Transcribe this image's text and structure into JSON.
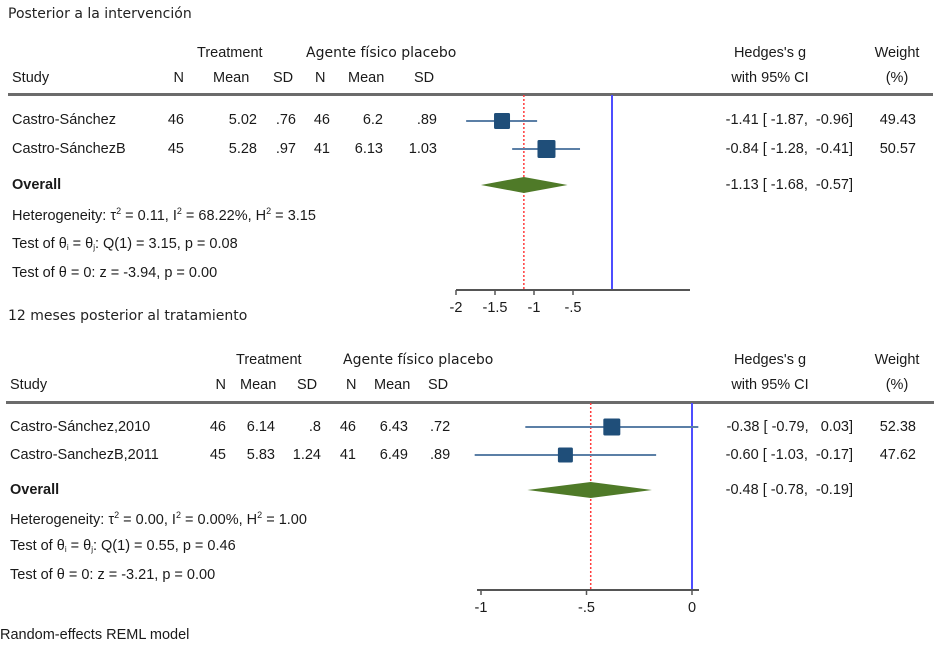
{
  "colors": {
    "study_marker": "#1f4e79",
    "ci_line": "#5b7fa6",
    "overall_diamond": "#4f7a28",
    "null_line": "#4d4dff",
    "overall_line": "#ff3b3b",
    "axis": "#555555"
  },
  "footer": "Random-effects REML model",
  "panels": [
    {
      "title": "Posterior a la intervención",
      "headers": {
        "group1": "Treatment",
        "group2": "Agente físico placebo",
        "study": "Study",
        "n1": "N",
        "mean1": "Mean",
        "sd1": "SD",
        "n2": "N",
        "mean2": "Mean",
        "sd2": "SD",
        "effect_line1": "Hedges's g",
        "effect_line2": "with 95% CI",
        "weight_line1": "Weight",
        "weight_line2": "(%)"
      },
      "rows": [
        {
          "study": "Castro-Sánchez",
          "n1": "46",
          "mean1": "5.02",
          "sd1": ".76",
          "n2": "46",
          "mean2": "6.2",
          "sd2": ".89",
          "effect_text": "-1.41 [ -1.87,  -0.96]",
          "weight": "49.43"
        },
        {
          "study": "Castro-SánchezB",
          "n1": "45",
          "mean1": "5.28",
          "sd1": ".97",
          "n2": "41",
          "mean2": "6.13",
          "sd2": "1.03",
          "effect_text": "-0.84 [ -1.28,  -0.41]",
          "weight": "50.57"
        }
      ],
      "overall": {
        "label": "Overall",
        "effect_text": "-1.13 [ -1.68,  -0.57]"
      },
      "stats": {
        "heterogeneity": {
          "prefix": "Heterogeneity: ",
          "tau2": "0.11",
          "i2": "68.22%",
          "h2": "3.15"
        },
        "test_homog": {
          "prefix": "Test of θ",
          "q": "Q(1) = 3.15, p = 0.08"
        },
        "test_zero": "Test of θ = 0: z = -3.94, p = 0.00"
      }
    },
    {
      "title": "12 meses posterior al tratamiento",
      "headers": {
        "group1": "Treatment",
        "group2": "Agente físico placebo",
        "study": "Study",
        "n1": "N",
        "mean1": "Mean",
        "sd1": "SD",
        "n2": "N",
        "mean2": "Mean",
        "sd2": "SD",
        "effect_line1": "Hedges's g",
        "effect_line2": "with 95% CI",
        "weight_line1": "Weight",
        "weight_line2": "(%)"
      },
      "rows": [
        {
          "study": "Castro-Sánchez,2010",
          "n1": "46",
          "mean1": "6.14",
          "sd1": ".8",
          "n2": "46",
          "mean2": "6.43",
          "sd2": ".72",
          "effect_text": "-0.38 [ -0.79,   0.03]",
          "weight": "52.38"
        },
        {
          "study": "Castro-SanchezB,2011",
          "n1": "45",
          "mean1": "5.83",
          "sd1": "1.24",
          "n2": "41",
          "mean2": "6.49",
          "sd2": ".89",
          "effect_text": "-0.60 [ -1.03,  -0.17]",
          "weight": "47.62"
        }
      ],
      "overall": {
        "label": "Overall",
        "effect_text": "-0.48 [ -0.78,  -0.19]"
      },
      "stats": {
        "heterogeneity": {
          "prefix": "Heterogeneity: ",
          "tau2": "0.00",
          "i2": "0.00%",
          "h2": "1.00"
        },
        "test_homog": {
          "prefix": "Test of θ",
          "q": "Q(1) = 0.55, p = 0.46"
        },
        "test_zero": "Test of θ = 0: z = -3.21, p = 0.00"
      }
    }
  ],
  "chart_data": [
    {
      "type": "forest",
      "title": "Posterior a la intervención",
      "xlabel": "Hedges's g",
      "xlim": [
        -2,
        0
      ],
      "xticks": [
        -2,
        -1.5,
        -1,
        -0.5
      ],
      "xtick_labels": [
        "-2",
        "-1.5",
        "-1",
        "-.5"
      ],
      "null_line": 0,
      "overall_line": -1.13,
      "studies": [
        {
          "name": "Castro-Sánchez",
          "effect": -1.41,
          "ci": [
            -1.87,
            -0.96
          ],
          "weight": 49.43
        },
        {
          "name": "Castro-SánchezB",
          "effect": -0.84,
          "ci": [
            -1.28,
            -0.41
          ],
          "weight": 50.57
        }
      ],
      "overall": {
        "effect": -1.13,
        "ci": [
          -1.68,
          -0.57
        ]
      }
    },
    {
      "type": "forest",
      "title": "12 meses posterior al tratamiento",
      "xlabel": "Hedges's g",
      "xlim": [
        -1.05,
        0.03
      ],
      "xticks": [
        -1,
        -0.5,
        0
      ],
      "xtick_labels": [
        "-1",
        "-.5",
        "0"
      ],
      "null_line": 0,
      "overall_line": -0.48,
      "studies": [
        {
          "name": "Castro-Sánchez,2010",
          "effect": -0.38,
          "ci": [
            -0.79,
            0.03
          ],
          "weight": 52.38
        },
        {
          "name": "Castro-SanchezB,2011",
          "effect": -0.6,
          "ci": [
            -1.03,
            -0.17
          ],
          "weight": 47.62
        }
      ],
      "overall": {
        "effect": -0.48,
        "ci": [
          -0.78,
          -0.19
        ]
      }
    }
  ]
}
